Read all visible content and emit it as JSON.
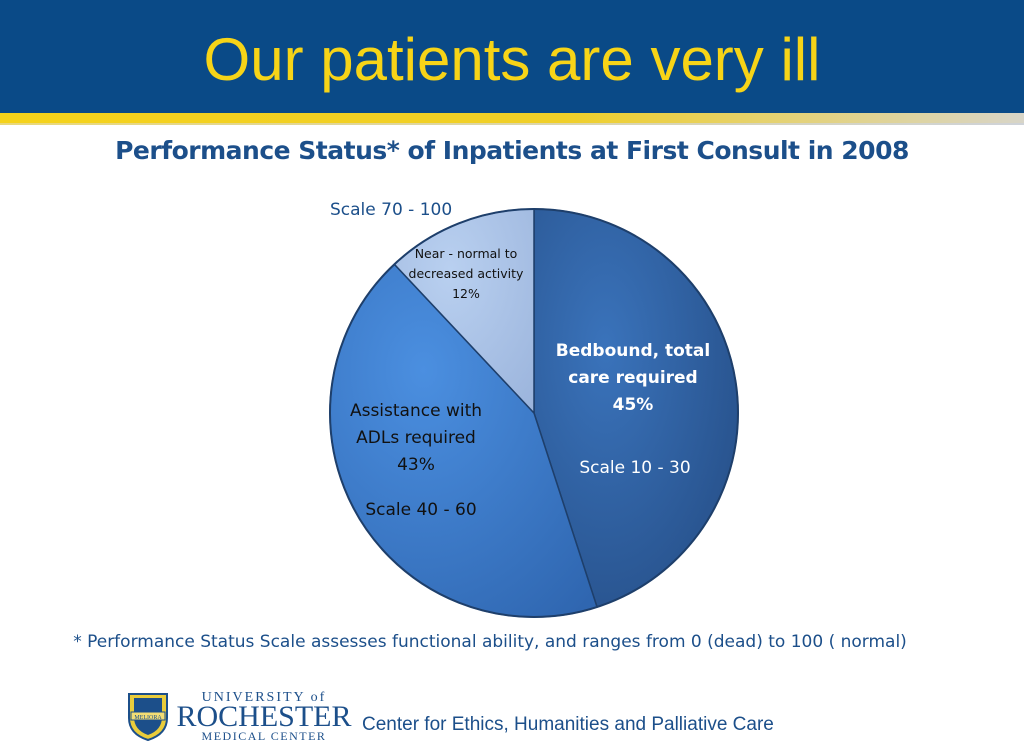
{
  "header": {
    "title": "Our patients are very ill"
  },
  "colors": {
    "header_bg": "#0a4a87",
    "title": "#f7d417",
    "text_blue": "#1c4f8a"
  },
  "chart_data": {
    "type": "pie",
    "title": "Performance Status* of Inpatients at First Consult in 2008",
    "slices": [
      {
        "label": "Bedbound, total care required",
        "value": 45,
        "value_label": "45%",
        "scale": "Scale  10 - 30",
        "color": "#2e63a7"
      },
      {
        "label": "Assistance with ADLs required",
        "value": 43,
        "value_label": "43%",
        "scale": "Scale  40 - 60",
        "color": "#3a7bce"
      },
      {
        "label": "Near - normal to decreased activity",
        "value": 12,
        "value_label": "12%",
        "scale": "Scale 70 - 100",
        "color": "#a9c2e7"
      }
    ]
  },
  "labels": {
    "bedbound_line1": "Bedbound, total",
    "bedbound_line2": "care required",
    "bedbound_pct": "45%",
    "bedbound_scale": "Scale  10 - 30",
    "adl_line1": "Assistance with",
    "adl_line2": "ADLs required",
    "adl_pct": "43%",
    "adl_scale": "Scale  40 - 60",
    "near_line1": "Near - normal to",
    "near_line2": "decreased activity",
    "near_pct": "12%",
    "near_scale": "Scale 70 - 100"
  },
  "footnote": "* Performance Status Scale assesses functional ability, and ranges from 0 (dead) to 100 ( normal)",
  "footer": {
    "logo_line1": "UNIVERSITY of",
    "logo_line2": "ROCHESTER",
    "logo_line3": "MEDICAL CENTER",
    "logo_shield_text": "MELIORA",
    "center_text": "Center for Ethics, Humanities and Palliative Care"
  }
}
